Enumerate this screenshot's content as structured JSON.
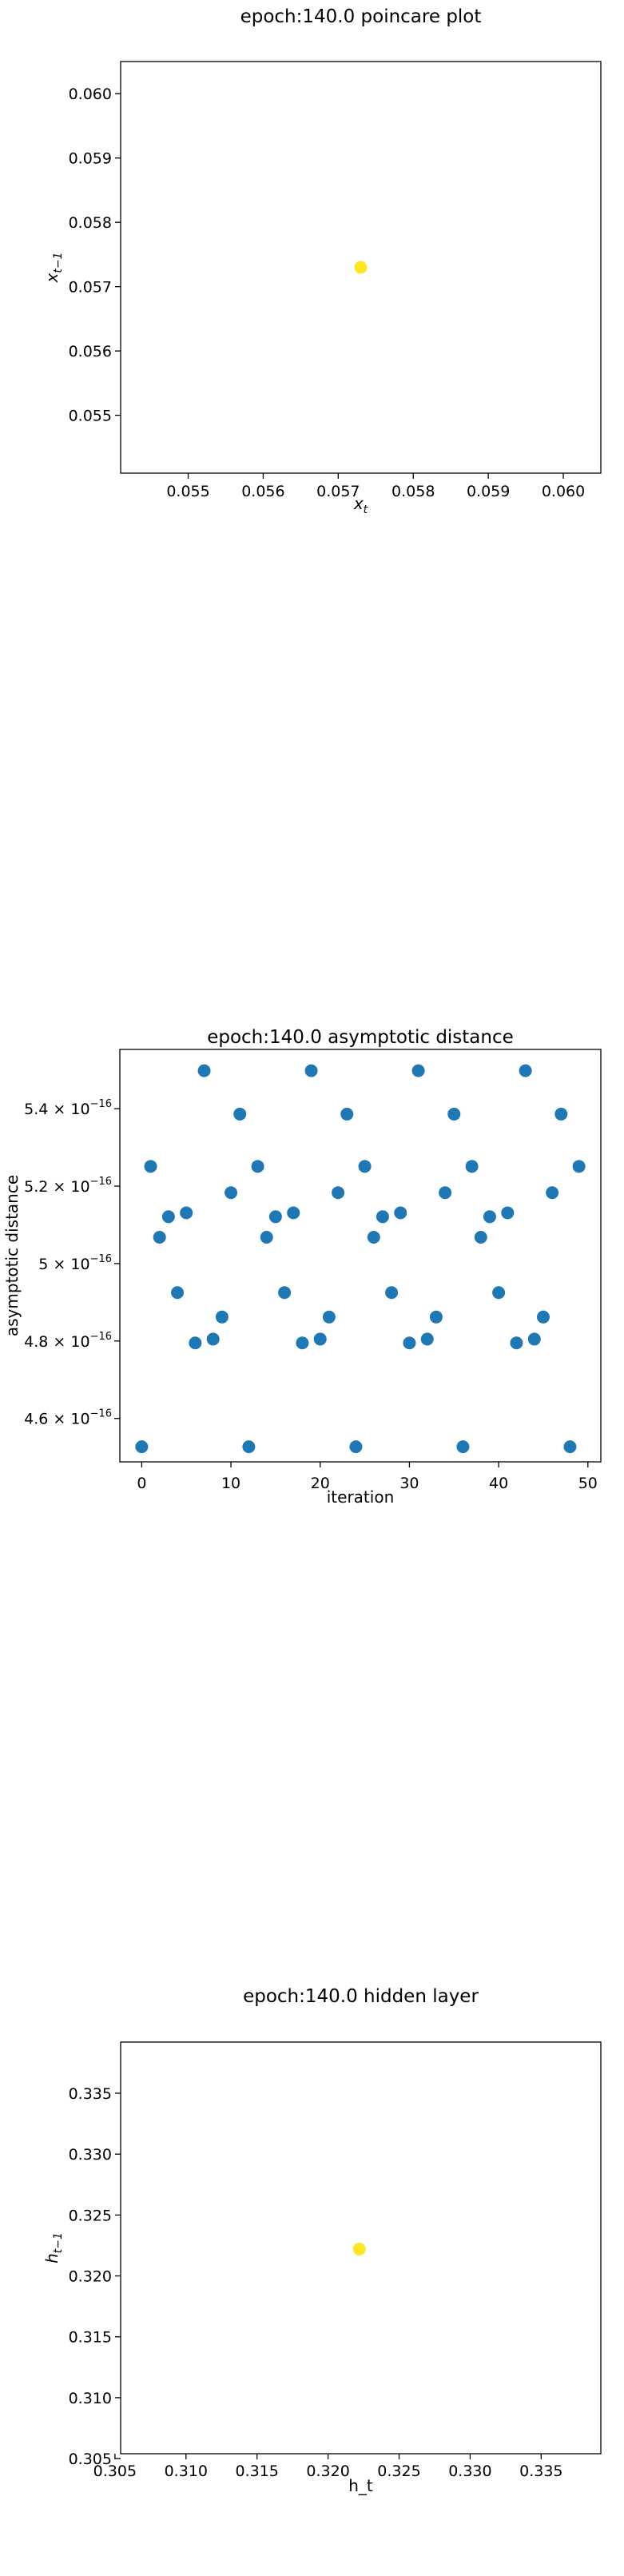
{
  "chart_data": [
    {
      "type": "scatter",
      "title": "epoch:140.0 poincare plot",
      "xlabel": "x_t",
      "ylabel": "x_{t-1}",
      "xlim": [
        0.0541,
        0.0605
      ],
      "ylim": [
        0.0541,
        0.0605
      ],
      "x_ticks": [
        0.055,
        0.056,
        0.057,
        0.058,
        0.059,
        0.06
      ],
      "x_tick_labels": [
        "0.055",
        "0.056",
        "0.057",
        "0.058",
        "0.059",
        "0.060"
      ],
      "y_ticks": [
        0.055,
        0.056,
        0.057,
        0.058,
        0.059,
        0.06
      ],
      "y_tick_labels": [
        "0.055",
        "0.056",
        "0.057",
        "0.058",
        "0.059",
        "0.060"
      ],
      "points": [
        {
          "x": 0.0573,
          "y": 0.0573
        }
      ],
      "color": "#fde725"
    },
    {
      "type": "scatter",
      "title": "epoch:140.0 asymptotic distance",
      "xlabel": "iteration",
      "ylabel": "asymptotic distance",
      "xlim": [
        -2.45,
        51.45
      ],
      "ylim": [
        4.488e-16,
        5.553e-16
      ],
      "x_ticks": [
        0,
        10,
        20,
        30,
        40,
        50
      ],
      "x_tick_labels": [
        "0",
        "10",
        "20",
        "30",
        "40",
        "50"
      ],
      "y_ticks": [
        4.6e-16,
        4.8e-16,
        5e-16,
        5.2e-16,
        5.4e-16
      ],
      "y_tick_labels": [
        [
          "4.6",
          "−16"
        ],
        [
          "4.8",
          "−16"
        ],
        [
          "5",
          "−16"
        ],
        [
          "5.2",
          "−16"
        ],
        [
          "5.4",
          "−16"
        ]
      ],
      "y_tick_base": "× 10",
      "x": [
        0,
        1,
        2,
        3,
        4,
        5,
        6,
        7,
        8,
        9,
        10,
        11,
        12,
        13,
        14,
        15,
        16,
        17,
        18,
        19,
        20,
        21,
        22,
        23,
        24,
        25,
        26,
        27,
        28,
        29,
        30,
        31,
        32,
        33,
        34,
        35,
        36,
        37,
        38,
        39,
        40,
        41,
        42,
        43,
        44,
        45,
        46,
        47,
        48,
        49
      ],
      "y": [
        4.527e-16,
        5.251e-16,
        5.068e-16,
        5.121e-16,
        4.925e-16,
        5.131e-16,
        4.795e-16,
        5.498e-16,
        4.805e-16,
        4.862e-16,
        5.183e-16,
        5.386e-16,
        4.527e-16,
        5.251e-16,
        5.068e-16,
        5.121e-16,
        4.925e-16,
        5.131e-16,
        4.795e-16,
        5.498e-16,
        4.805e-16,
        4.862e-16,
        5.183e-16,
        5.386e-16,
        4.527e-16,
        5.251e-16,
        5.068e-16,
        5.121e-16,
        4.925e-16,
        5.131e-16,
        4.795e-16,
        5.498e-16,
        4.805e-16,
        4.862e-16,
        5.183e-16,
        5.386e-16,
        4.527e-16,
        5.251e-16,
        5.068e-16,
        5.121e-16,
        4.925e-16,
        5.131e-16,
        4.795e-16,
        5.498e-16,
        4.805e-16,
        4.862e-16,
        5.183e-16,
        5.386e-16,
        4.527e-16,
        5.251e-16
      ],
      "color": "#1f77b4"
    },
    {
      "type": "scatter",
      "title": "epoch:140.0 hidden layer",
      "xlabel": "h_t",
      "ylabel": "h_{t-1}",
      "xlim": [
        0.3054,
        0.3392
      ],
      "ylim": [
        0.3054,
        0.3392
      ],
      "x_ticks": [
        0.305,
        0.31,
        0.315,
        0.32,
        0.325,
        0.33,
        0.335
      ],
      "x_tick_labels": [
        "0.305",
        "0.310",
        "0.315",
        "0.320",
        "0.325",
        "0.330",
        "0.335"
      ],
      "y_ticks": [
        0.305,
        0.31,
        0.315,
        0.32,
        0.325,
        0.33,
        0.335
      ],
      "y_tick_labels": [
        "0.305",
        "0.310",
        "0.315",
        "0.320",
        "0.325",
        "0.330",
        "0.335"
      ],
      "points": [
        {
          "x": 0.3222,
          "y": 0.3222
        }
      ],
      "color": "#fde725"
    }
  ]
}
